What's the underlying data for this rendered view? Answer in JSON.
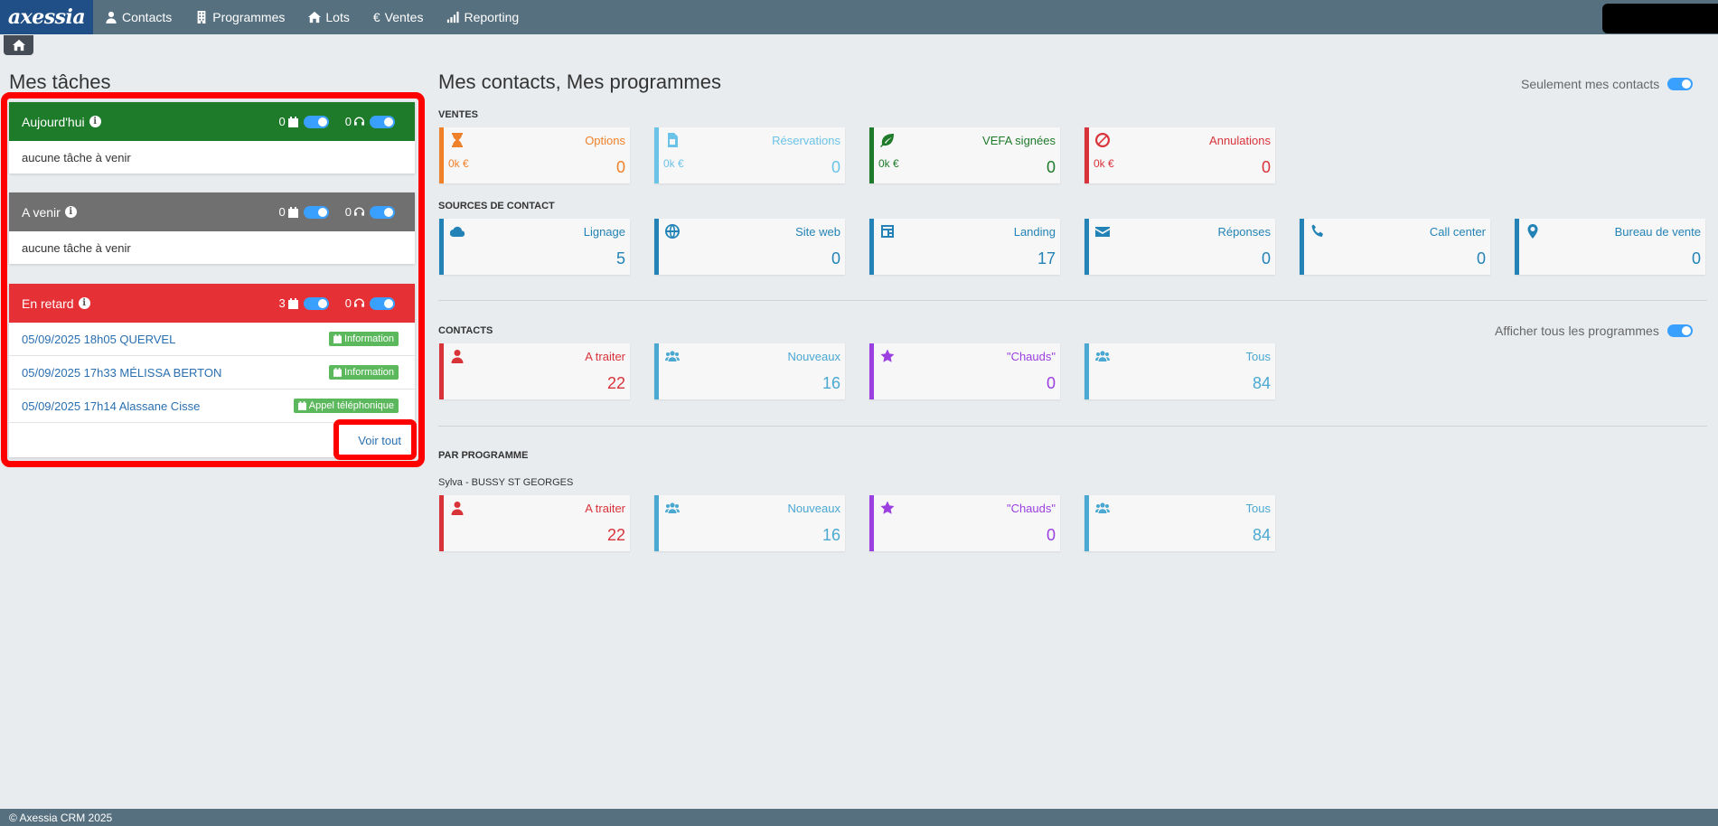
{
  "nav": {
    "logo": "axessia",
    "items": [
      {
        "label": "Contacts",
        "icon": "user-icon"
      },
      {
        "label": "Programmes",
        "icon": "building-icon"
      },
      {
        "label": "Lots",
        "icon": "home-icon"
      },
      {
        "label": "Ventes",
        "icon": "euro-icon"
      },
      {
        "label": "Reporting",
        "icon": "signal-icon"
      }
    ]
  },
  "tasks": {
    "title": "Mes tâches",
    "today": {
      "title": "Aujourd'hui",
      "calendar_count": "0",
      "phone_count": "0",
      "empty_text": "aucune tâche à venir",
      "color": "#1e7b2a"
    },
    "upcoming": {
      "title": "A venir",
      "calendar_count": "0",
      "phone_count": "0",
      "empty_text": "aucune tâche à venir",
      "color": "#707070"
    },
    "late": {
      "title": "En retard",
      "calendar_count": "3",
      "phone_count": "0",
      "color": "#e53035",
      "rows": [
        {
          "text": "05/09/2025 18h05 QUERVEL",
          "badge": "Information"
        },
        {
          "text": "05/09/2025 17h33 MÉLISSA BERTON",
          "badge": "Information"
        },
        {
          "text": "05/09/2025 17h14 Alassane Cisse",
          "badge": "Appel téléphonique"
        }
      ],
      "see_all": "Voir tout"
    }
  },
  "main": {
    "title": "Mes contacts, Mes programmes",
    "only_my_contacts": "Seulement mes contacts",
    "show_all_programs": "Afficher tous les programmes",
    "sections": {
      "ventes": "VENTES",
      "sources": "SOURCES DE CONTACT",
      "contacts": "CONTACTS",
      "par_programme": "PAR PROGRAMME",
      "programme_name": "Sylva - BUSSY ST GEORGES"
    },
    "ventes": [
      {
        "title": "Options",
        "sub": "0k €",
        "value": "0",
        "color": "#f0812b",
        "icon": "hourglass-icon"
      },
      {
        "title": "Réservations",
        "sub": "0k €",
        "value": "0",
        "color": "#6cc3e8",
        "icon": "file-icon"
      },
      {
        "title": "VEFA signées",
        "sub": "0k €",
        "value": "0",
        "color": "#1e7b2a",
        "icon": "leaf-icon"
      },
      {
        "title": "Annulations",
        "sub": "0k €",
        "value": "0",
        "color": "#d9333a",
        "icon": "ban-icon"
      }
    ],
    "sources": [
      {
        "title": "Lignage",
        "value": "5",
        "icon": "cloud-icon"
      },
      {
        "title": "Site web",
        "value": "0",
        "icon": "globe-icon"
      },
      {
        "title": "Landing",
        "value": "17",
        "icon": "landing-icon"
      },
      {
        "title": "Réponses",
        "value": "0",
        "icon": "envelope-icon"
      },
      {
        "title": "Call center",
        "value": "0",
        "icon": "phone-icon"
      },
      {
        "title": "Bureau de vente",
        "value": "0",
        "icon": "map-marker-icon"
      }
    ],
    "sources_color": "#2383b6",
    "contacts": [
      {
        "title": "A traiter",
        "value": "22",
        "color": "#d9333a",
        "icon": "user-icon"
      },
      {
        "title": "Nouveaux",
        "value": "16",
        "color": "#4aa8d2",
        "icon": "users-icon"
      },
      {
        "title": "\"Chauds\"",
        "value": "0",
        "color": "#9b3fe0",
        "icon": "star-icon"
      },
      {
        "title": "Tous",
        "value": "84",
        "color": "#4aa8d2",
        "icon": "users-icon"
      }
    ],
    "programme": [
      {
        "title": "A traiter",
        "value": "22",
        "color": "#d9333a",
        "icon": "user-icon"
      },
      {
        "title": "Nouveaux",
        "value": "16",
        "color": "#4aa8d2",
        "icon": "users-icon"
      },
      {
        "title": "\"Chauds\"",
        "value": "0",
        "color": "#9b3fe0",
        "icon": "star-icon"
      },
      {
        "title": "Tous",
        "value": "84",
        "color": "#4aa8d2",
        "icon": "users-icon"
      }
    ]
  },
  "footer": {
    "text": "© Axessia CRM 2025"
  }
}
